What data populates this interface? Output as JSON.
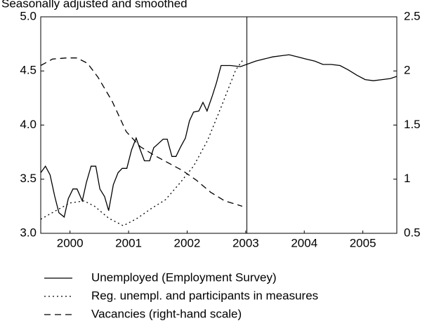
{
  "chart_data": {
    "type": "line",
    "subtitle": "Seasonally adjusted and smoothed",
    "xlim": [
      2000,
      2006.08
    ],
    "xticks": [
      {
        "value": 2000.5,
        "label": "2000"
      },
      {
        "value": 2001.5,
        "label": "2001"
      },
      {
        "value": 2002.5,
        "label": "2002"
      },
      {
        "value": 2003.5,
        "label": "2003"
      },
      {
        "value": 2004.5,
        "label": "2004"
      },
      {
        "value": 2005.5,
        "label": "2005"
      }
    ],
    "ylim": [
      3.0,
      5.0
    ],
    "yticks": [
      {
        "value": 3.0,
        "label": "3.0"
      },
      {
        "value": 3.5,
        "label": "3.5"
      },
      {
        "value": 4.0,
        "label": "4.0"
      },
      {
        "value": 4.5,
        "label": "4.5"
      },
      {
        "value": 5.0,
        "label": "5.0"
      }
    ],
    "y2lim": [
      0.5,
      2.5
    ],
    "y2ticks": [
      0.5,
      1.0,
      1.5,
      2.0,
      2.5
    ],
    "divider_x": 2003.52,
    "series": [
      {
        "name": "Unemployed (Employment Survey)",
        "color": "#000000",
        "dash": "solid",
        "x": [
          2000.0,
          2000.08,
          2000.16,
          2000.24,
          2000.31,
          2000.4,
          2000.47,
          2000.55,
          2000.62,
          2000.71,
          2000.78,
          2000.86,
          2000.94,
          2001.01,
          2001.09,
          2001.16,
          2001.24,
          2001.32,
          2001.39,
          2001.47,
          2001.55,
          2001.63,
          2001.7,
          2001.77,
          2001.86,
          2001.93,
          2002.01,
          2002.09,
          2002.16,
          2002.24,
          2002.31,
          2002.39,
          2002.47,
          2002.54,
          2002.61,
          2002.7,
          2002.77,
          2002.84,
          2002.93,
          2003.0,
          2003.08,
          2003.24,
          2003.41,
          2003.67,
          2003.81,
          2003.96,
          2004.1,
          2004.24,
          2004.39,
          2004.53,
          2004.68,
          2004.82,
          2004.96,
          2005.11,
          2005.25,
          2005.4,
          2005.54,
          2005.68,
          2005.83,
          2005.97,
          2006.08
        ],
        "values": [
          3.56,
          3.62,
          3.54,
          3.34,
          3.19,
          3.15,
          3.32,
          3.41,
          3.41,
          3.3,
          3.47,
          3.62,
          3.62,
          3.41,
          3.34,
          3.21,
          3.45,
          3.56,
          3.6,
          3.6,
          3.77,
          3.88,
          3.77,
          3.67,
          3.67,
          3.79,
          3.83,
          3.87,
          3.87,
          3.71,
          3.71,
          3.8,
          3.88,
          4.04,
          4.12,
          4.13,
          4.21,
          4.13,
          4.27,
          4.39,
          4.55,
          4.55,
          4.54,
          4.59,
          4.61,
          4.63,
          4.64,
          4.65,
          4.63,
          4.61,
          4.59,
          4.56,
          4.56,
          4.55,
          4.51,
          4.46,
          4.42,
          4.41,
          4.42,
          4.43,
          4.45
        ]
      },
      {
        "name": "Reg. unempl. and participants in measures",
        "color": "#000000",
        "dash": "dotted",
        "x": [
          2000.0,
          2000.26,
          2000.5,
          2000.74,
          2000.92,
          2001.16,
          2001.41,
          2001.65,
          2001.89,
          2002.13,
          2002.37,
          2002.61,
          2002.85,
          2003.09,
          2003.33,
          2003.45
        ],
        "values": [
          3.13,
          3.21,
          3.28,
          3.3,
          3.25,
          3.14,
          3.07,
          3.14,
          3.23,
          3.31,
          3.46,
          3.62,
          3.86,
          4.18,
          4.51,
          4.6
        ]
      },
      {
        "name": "Vacancies (right-hand scale)",
        "color": "#000000",
        "dash": "dashed",
        "axis": "y2",
        "x": [
          2000.0,
          2000.2,
          2000.44,
          2000.62,
          2000.8,
          2000.98,
          2001.22,
          2001.46,
          2001.7,
          2001.94,
          2002.18,
          2002.42,
          2002.66,
          2002.9,
          2003.14,
          2003.44
        ],
        "values": [
          2.05,
          2.11,
          2.12,
          2.12,
          2.07,
          1.94,
          1.72,
          1.44,
          1.3,
          1.22,
          1.15,
          1.08,
          0.99,
          0.88,
          0.8,
          0.75
        ]
      }
    ]
  }
}
